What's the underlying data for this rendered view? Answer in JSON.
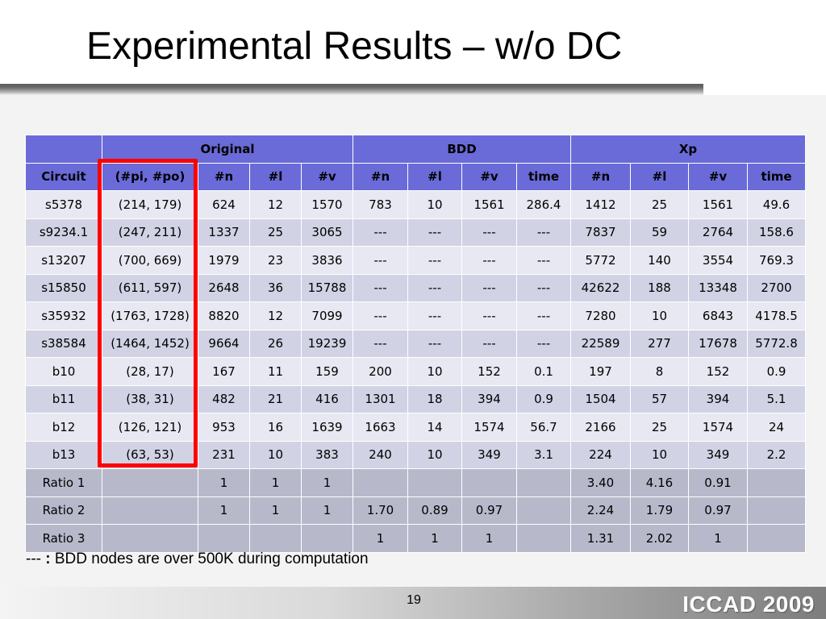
{
  "title": "Experimental Results – w/o DC",
  "table": {
    "group_headers": [
      "",
      "Original",
      "BDD",
      "Xp"
    ],
    "columns": [
      "Circuit",
      "(#pi, #po)",
      "#n",
      "#l",
      "#v",
      "#n",
      "#l",
      "#v",
      "time",
      "#n",
      "#l",
      "#v",
      "time"
    ],
    "rows": [
      [
        "s5378",
        "(214, 179)",
        "624",
        "12",
        "1570",
        "783",
        "10",
        "1561",
        "286.4",
        "1412",
        "25",
        "1561",
        "49.6"
      ],
      [
        "s9234.1",
        "(247, 211)",
        "1337",
        "25",
        "3065",
        "---",
        "---",
        "---",
        "---",
        "7837",
        "59",
        "2764",
        "158.6"
      ],
      [
        "s13207",
        "(700, 669)",
        "1979",
        "23",
        "3836",
        "---",
        "---",
        "---",
        "---",
        "5772",
        "140",
        "3554",
        "769.3"
      ],
      [
        "s15850",
        "(611, 597)",
        "2648",
        "36",
        "15788",
        "---",
        "---",
        "---",
        "---",
        "42622",
        "188",
        "13348",
        "2700"
      ],
      [
        "s35932",
        "(1763, 1728)",
        "8820",
        "12",
        "7099",
        "---",
        "---",
        "---",
        "---",
        "7280",
        "10",
        "6843",
        "4178.5"
      ],
      [
        "s38584",
        "(1464, 1452)",
        "9664",
        "26",
        "19239",
        "---",
        "---",
        "---",
        "---",
        "22589",
        "277",
        "17678",
        "5772.8"
      ],
      [
        "b10",
        "(28, 17)",
        "167",
        "11",
        "159",
        "200",
        "10",
        "152",
        "0.1",
        "197",
        "8",
        "152",
        "0.9"
      ],
      [
        "b11",
        "(38, 31)",
        "482",
        "21",
        "416",
        "1301",
        "18",
        "394",
        "0.9",
        "1504",
        "57",
        "394",
        "5.1"
      ],
      [
        "b12",
        "(126, 121)",
        "953",
        "16",
        "1639",
        "1663",
        "14",
        "1574",
        "56.7",
        "2166",
        "25",
        "1574",
        "24"
      ],
      [
        "b13",
        "(63, 53)",
        "231",
        "10",
        "383",
        "240",
        "10",
        "349",
        "3.1",
        "224",
        "10",
        "349",
        "2.2"
      ]
    ],
    "ratio_rows": [
      [
        "Ratio 1",
        "",
        "1",
        "1",
        "1",
        "",
        "",
        "",
        "",
        "3.40",
        "4.16",
        "0.91",
        ""
      ],
      [
        "Ratio 2",
        "",
        "1",
        "1",
        "1",
        "1.70",
        "0.89",
        "0.97",
        "",
        "2.24",
        "1.79",
        "0.97",
        ""
      ],
      [
        "Ratio 3",
        "",
        "",
        "",
        "",
        "1",
        "1",
        "1",
        "",
        "1.31",
        "2.02",
        "1",
        ""
      ]
    ]
  },
  "note": {
    "prefix": "--- ",
    "bold": ":",
    "text": " BDD nodes are over 500K during computation"
  },
  "page_number": "19",
  "brand": "ICCAD 2009",
  "colors": {
    "header_bg": "#6a6bd8",
    "row_light": "#e7e8f1",
    "row_dark": "#d1d2e4",
    "ratio_bg": "#b7b9cb",
    "highlight": "#ff0000"
  }
}
